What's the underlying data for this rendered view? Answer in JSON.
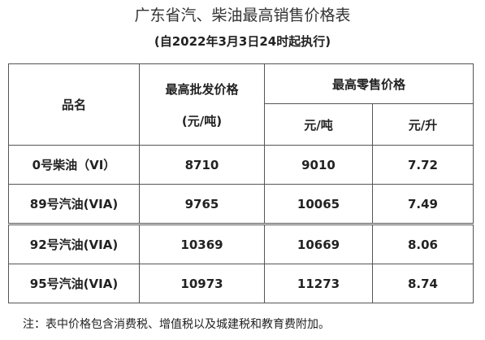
{
  "header": {
    "title": "广东省汽、柴油最高销售价格表",
    "subtitle": "(自2022年3月3日24时起执行)"
  },
  "table": {
    "head": {
      "name": "品名",
      "wholesale": "最高批发价格",
      "wholesale_unit": "(元/吨)",
      "retail": "最高零售价格",
      "retail_ton": "元/吨",
      "retail_liter": "元/升"
    },
    "rows": [
      [
        "0号柴油（VI）",
        "8710",
        "9010",
        "7.72"
      ],
      [
        "89号汽油(VIA)",
        "9765",
        "10065",
        "7.49"
      ],
      [
        "92号汽油(VIA)",
        "10369",
        "10669",
        "8.06"
      ],
      [
        "95号汽油(VIA)",
        "10973",
        "11273",
        "8.74"
      ]
    ]
  },
  "note": "注：表中价格包含消费税、增值税以及城建税和教育费附加。"
}
